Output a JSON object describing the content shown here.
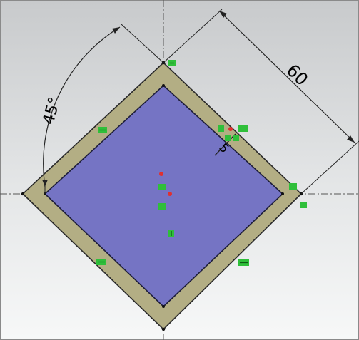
{
  "sketch": {
    "angle_dimension": "45°",
    "linear_dimension": "60",
    "fillet_dimension": "5"
  },
  "colors": {
    "face": "#7574c4",
    "border": "#b3ae84",
    "outline": "#2a2a2a",
    "relation_green": "#2fbf3a",
    "point_red": "#e03030",
    "background_top": "#c9cbcd",
    "background_bottom": "#f6f7f7"
  },
  "icons": [
    "horizontal-relation-icon",
    "vertical-relation-icon",
    "coincident-relation-icon",
    "midpoint-relation-icon",
    "fixed-relation-icon",
    "parallel-relation-icon"
  ]
}
